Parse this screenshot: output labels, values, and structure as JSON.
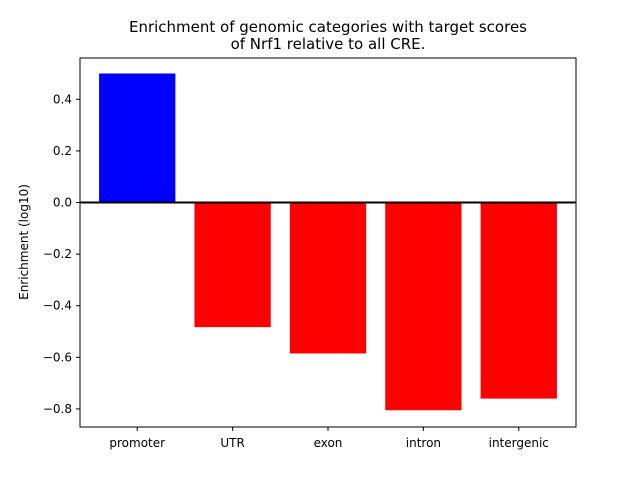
{
  "chart_data": {
    "type": "bar",
    "title": [
      "Enrichment of genomic categories with target scores",
      "of Nrf1 relative to all CRE."
    ],
    "xlabel": "",
    "ylabel": "Enrichment (log10)",
    "categories": [
      "promoter",
      "UTR",
      "exon",
      "intron",
      "intergenic"
    ],
    "values": [
      0.5,
      -0.483,
      -0.585,
      -0.805,
      -0.76
    ],
    "colors": [
      "#0000ff",
      "#ff0000",
      "#ff0000",
      "#ff0000",
      "#ff0000"
    ],
    "ylim": [
      -0.87,
      0.56
    ],
    "yticks": [
      -0.8,
      -0.6,
      -0.4,
      -0.2,
      0.0,
      0.2,
      0.4
    ],
    "ytick_labels": [
      "−0.8",
      "−0.6",
      "−0.4",
      "−0.2",
      "0.0",
      "0.2",
      "0.4"
    ],
    "zero_line": true,
    "grid": false,
    "legend": "none"
  }
}
